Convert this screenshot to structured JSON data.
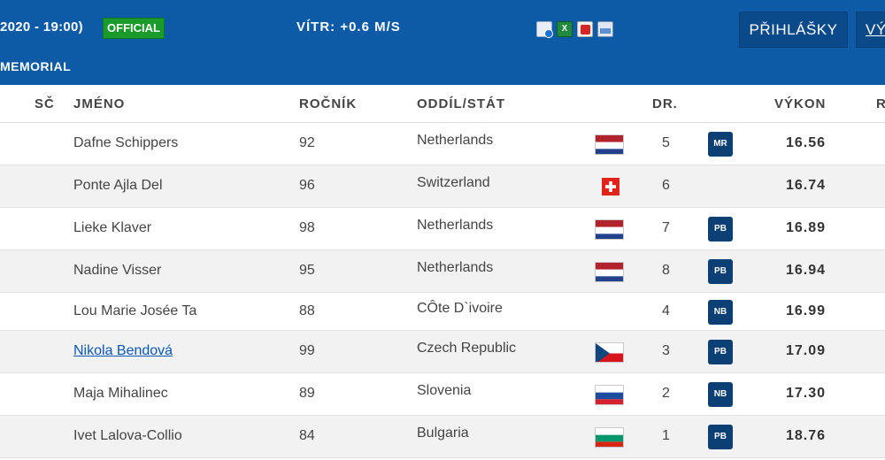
{
  "header": {
    "date_time": "2020 - 19:00)",
    "status_badge": "OFFICIAL",
    "wind": "VÍTR: +0.6 M/S",
    "event": "MEMORIAL",
    "export_icons": [
      "document-info-icon",
      "excel-icon",
      "pdf-icon",
      "image-icon"
    ],
    "buttons": {
      "registrations": "PŘIHLÁŠKY",
      "results": "VÝ"
    },
    "colors": {
      "bar": "#0d5aa6",
      "official": "#1a9a2a",
      "badge": "#0c3f73",
      "link": "#0b57b8"
    }
  },
  "table": {
    "columns": {
      "sc": "SČ",
      "name": "JMÉNO",
      "year": "ROČNÍK",
      "club": "ODDÍL/STÁT",
      "lane": "DR.",
      "result": "VÝKON",
      "extra": "R"
    },
    "rows": [
      {
        "name": "Dafne Schippers",
        "year": "92",
        "club": "Netherlands",
        "flag": "netherlands",
        "lane": "5",
        "badge": "MR",
        "result": "16.56",
        "link": false
      },
      {
        "name": "Ponte Ajla Del",
        "year": "96",
        "club": "Switzerland",
        "flag": "switzerland",
        "lane": "6",
        "badge": "",
        "result": "16.74",
        "link": false
      },
      {
        "name": "Lieke Klaver",
        "year": "98",
        "club": "Netherlands",
        "flag": "netherlands",
        "lane": "7",
        "badge": "PB",
        "result": "16.89",
        "link": false
      },
      {
        "name": "Nadine Visser",
        "year": "95",
        "club": "Netherlands",
        "flag": "netherlands",
        "lane": "8",
        "badge": "PB",
        "result": "16.94",
        "link": false
      },
      {
        "name": "Lou Marie Josée Ta",
        "year": "88",
        "club": "CÔte D`ivoire",
        "flag": "",
        "lane": "4",
        "badge": "NB",
        "result": "16.99",
        "link": false
      },
      {
        "name": "Nikola Bendová",
        "year": "99",
        "club": "Czech Republic",
        "flag": "czech",
        "lane": "3",
        "badge": "PB",
        "result": "17.09",
        "link": true
      },
      {
        "name": "Maja Mihalinec",
        "year": "89",
        "club": "Slovenia",
        "flag": "slovenia",
        "lane": "2",
        "badge": "NB",
        "result": "17.30",
        "link": false
      },
      {
        "name": "Ivet Lalova-Collio",
        "year": "84",
        "club": "Bulgaria",
        "flag": "bulgaria",
        "lane": "1",
        "badge": "PB",
        "result": "18.76",
        "link": false
      }
    ]
  }
}
